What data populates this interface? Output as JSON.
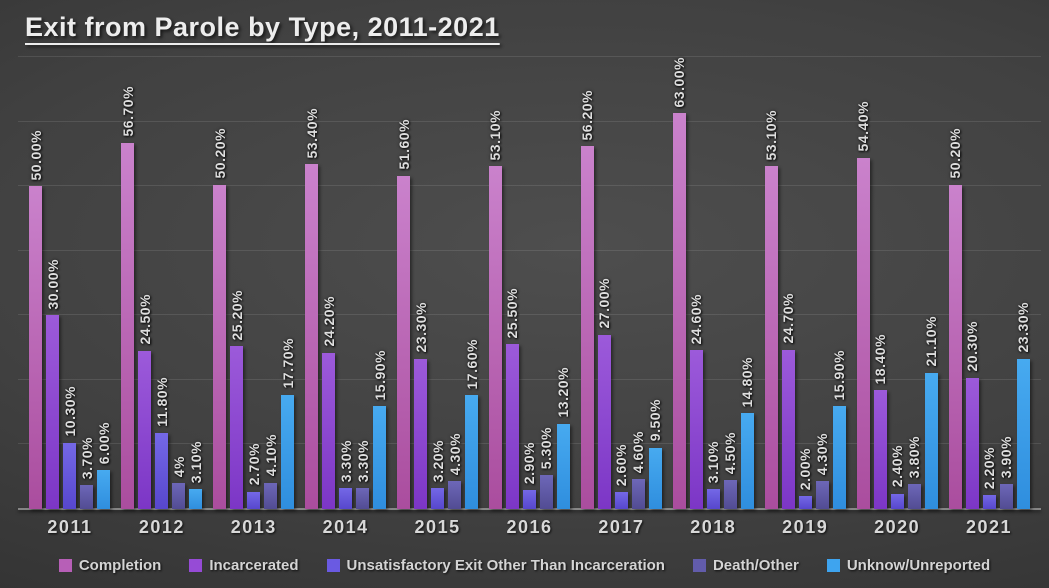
{
  "title": "Exit from Parole by Type, 2011-2021",
  "chart_data": {
    "type": "bar",
    "title": "Exit from Parole by Type, 2011-2021",
    "xlabel": "",
    "ylabel": "",
    "ylim": [
      0,
      70
    ],
    "gridline_step": 10,
    "grid": "horizontal",
    "legend_position": "bottom",
    "categories": [
      "2011",
      "2012",
      "2013",
      "2014",
      "2015",
      "2016",
      "2017",
      "2018",
      "2019",
      "2020",
      "2021"
    ],
    "series": [
      {
        "name": "Completion",
        "color": "#b75fb7",
        "color_top": "#ca82cc",
        "color_bottom": "#aa4d9e",
        "values": [
          50.0,
          56.7,
          50.2,
          53.4,
          51.6,
          53.1,
          56.2,
          63.0,
          53.1,
          54.4,
          50.2
        ],
        "labels": [
          "50.00%",
          "56.70%",
          "50.20%",
          "53.40%",
          "51.60%",
          "53.10%",
          "56.20%",
          "63.00%",
          "53.10%",
          "54.40%",
          "50.20%"
        ]
      },
      {
        "name": "Incarcerated",
        "color": "#964bd6",
        "color_top": "#9c5ada",
        "color_bottom": "#7c36c6",
        "values": [
          30.0,
          24.5,
          25.2,
          24.2,
          23.3,
          25.5,
          27.0,
          24.6,
          24.7,
          18.4,
          20.3
        ],
        "labels": [
          "30.00%",
          "24.50%",
          "25.20%",
          "24.20%",
          "23.30%",
          "25.50%",
          "27.00%",
          "24.60%",
          "24.70%",
          "18.40%",
          "20.30%"
        ]
      },
      {
        "name": "Unsatisfactory Exit Other Than Incarceration",
        "color": "#6a5ae2",
        "color_top": "#7468e6",
        "color_bottom": "#5747cd",
        "values": [
          10.3,
          11.8,
          2.7,
          3.3,
          3.2,
          2.9,
          2.6,
          3.1,
          2.0,
          2.4,
          2.2
        ],
        "labels": [
          "10.30%",
          "11.80%",
          "2.70%",
          "3.30%",
          "3.20%",
          "2.90%",
          "2.60%",
          "3.10%",
          "2.00%",
          "2.40%",
          "2.20%"
        ]
      },
      {
        "name": "Death/Other",
        "color": "#625cab",
        "color_top": "#6d67b8",
        "color_bottom": "#524c93",
        "values": [
          3.7,
          4.0,
          4.1,
          3.3,
          4.3,
          5.3,
          4.6,
          4.5,
          4.3,
          3.8,
          3.9
        ],
        "labels": [
          "3.70%",
          "4%",
          "4.10%",
          "3.30%",
          "4.30%",
          "5.30%",
          "4.60%",
          "4.50%",
          "4.30%",
          "3.80%",
          "3.90%"
        ]
      },
      {
        "name": "Unknow/Unreported",
        "color": "#3ea4ef",
        "color_top": "#47aaf0",
        "color_bottom": "#2f8ede",
        "values": [
          6.0,
          3.1,
          17.7,
          15.9,
          17.6,
          13.2,
          9.5,
          14.8,
          15.9,
          21.1,
          23.3
        ],
        "labels": [
          "6.00%",
          "3.10%",
          "17.70%",
          "15.90%",
          "17.60%",
          "13.20%",
          "9.50%",
          "14.80%",
          "15.90%",
          "21.10%",
          "23.30%"
        ]
      }
    ]
  }
}
